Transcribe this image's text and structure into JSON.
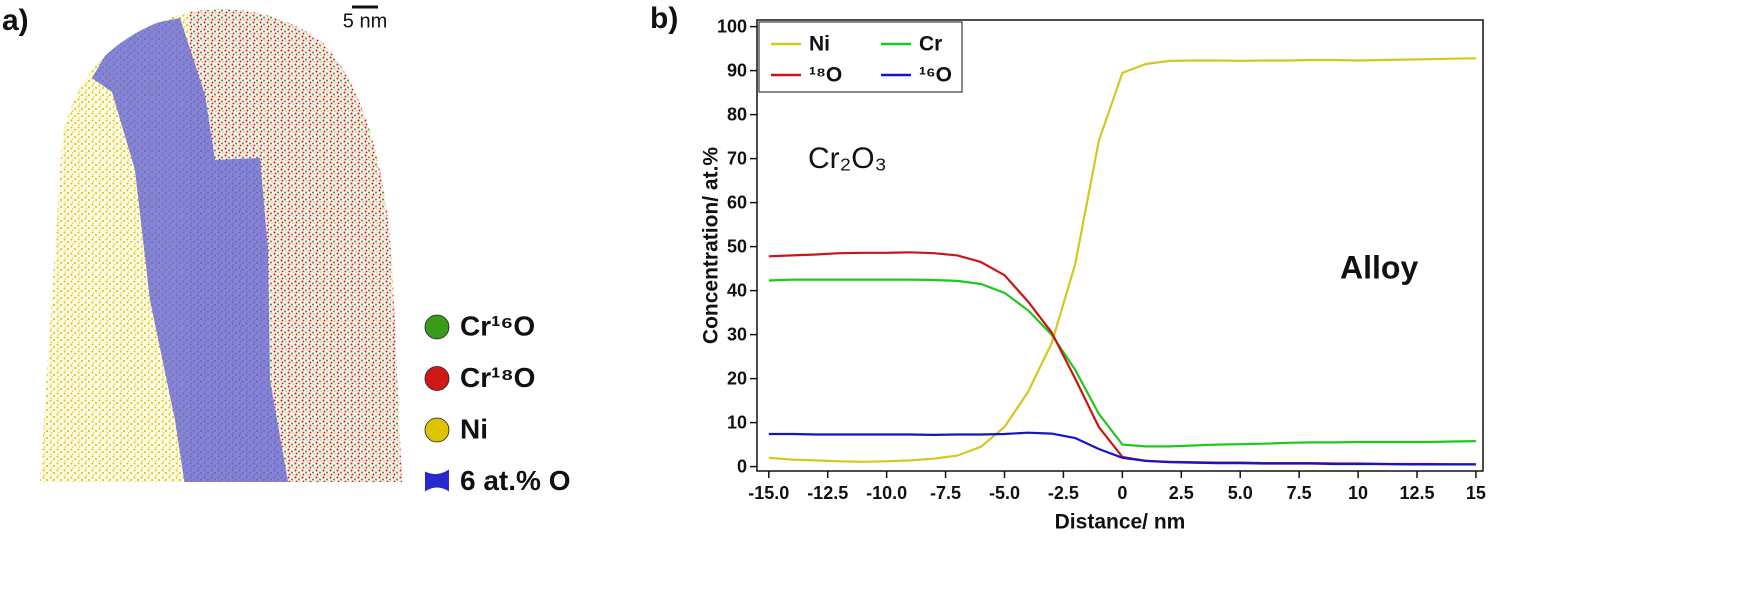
{
  "panel_a": {
    "label": "a)",
    "scale_bar": "5 nm",
    "legend": [
      {
        "name": "Cr¹⁶O",
        "color": "#3a9a1a"
      },
      {
        "name": "Cr¹⁸O",
        "color": "#d01818"
      },
      {
        "name": "Ni",
        "color": "#dcc400"
      },
      {
        "name": "6 at.% O",
        "color": "#2828d0"
      }
    ]
  },
  "chart_data": {
    "type": "line",
    "panel_label": "b)",
    "x_label": "Distance/ nm",
    "y_label": "Concentration/ at.%",
    "annotations": [
      "Cr₂O₃",
      "Alloy"
    ],
    "x": [
      -15,
      -14,
      -13,
      -12,
      -11,
      -10,
      -9,
      -8,
      -7,
      -6,
      -5,
      -4,
      -3,
      -2,
      -1,
      0,
      1,
      2,
      3,
      4,
      5,
      6,
      7,
      8,
      9,
      10,
      11,
      12,
      13,
      14,
      15
    ],
    "series": [
      {
        "name": "Ni",
        "color": "#d4c81e",
        "values": [
          2,
          1.6,
          1.4,
          1.2,
          1.1,
          1.2,
          1.4,
          1.8,
          2.5,
          4.5,
          9,
          17,
          28,
          46,
          74,
          89.5,
          91.5,
          92.2,
          92.3,
          92.3,
          92.2,
          92.3,
          92.3,
          92.4,
          92.4,
          92.3,
          92.4,
          92.5,
          92.6,
          92.7,
          92.8
        ]
      },
      {
        "name": "Cr",
        "color": "#1ec81e",
        "values": [
          42.3,
          42.5,
          42.5,
          42.5,
          42.5,
          42.5,
          42.5,
          42.4,
          42.2,
          41.5,
          39.5,
          35.5,
          30,
          22,
          12,
          5,
          4.6,
          4.6,
          4.8,
          5,
          5.1,
          5.2,
          5.4,
          5.5,
          5.5,
          5.6,
          5.6,
          5.6,
          5.6,
          5.7,
          5.8
        ]
      },
      {
        "name": "¹⁸O",
        "color": "#cc1414",
        "values": [
          47.8,
          48,
          48.2,
          48.5,
          48.6,
          48.6,
          48.7,
          48.5,
          48,
          46.5,
          43.5,
          37.5,
          30.5,
          20,
          9,
          2.2,
          1.3,
          1.1,
          1,
          0.9,
          0.9,
          0.8,
          0.8,
          0.8,
          0.7,
          0.7,
          0.6,
          0.6,
          0.6,
          0.5,
          0.5
        ]
      },
      {
        "name": "¹⁶O",
        "color": "#1414c8",
        "values": [
          7.4,
          7.4,
          7.3,
          7.3,
          7.3,
          7.3,
          7.3,
          7.2,
          7.3,
          7.3,
          7.4,
          7.7,
          7.5,
          6.5,
          4,
          2,
          1.3,
          1,
          0.9,
          0.8,
          0.8,
          0.7,
          0.7,
          0.7,
          0.6,
          0.6,
          0.6,
          0.5,
          0.5,
          0.5,
          0.5
        ]
      }
    ],
    "xlim": [
      -15.5,
      15.3
    ],
    "ylim": [
      -1,
      101.5
    ],
    "xticks": [
      {
        "value": -15,
        "label": "-15.0"
      },
      -12.5,
      {
        "value": -10,
        "label": "-10.0"
      },
      -7.5,
      {
        "value": -5,
        "label": "-5.0"
      },
      -2.5,
      0,
      2.5,
      {
        "value": 5,
        "label": "5.0"
      },
      7.5,
      10,
      12.5,
      15
    ],
    "yticks": [
      0,
      10,
      20,
      30,
      40,
      50,
      60,
      70,
      80,
      90,
      100
    ],
    "legend": "upper left"
  }
}
